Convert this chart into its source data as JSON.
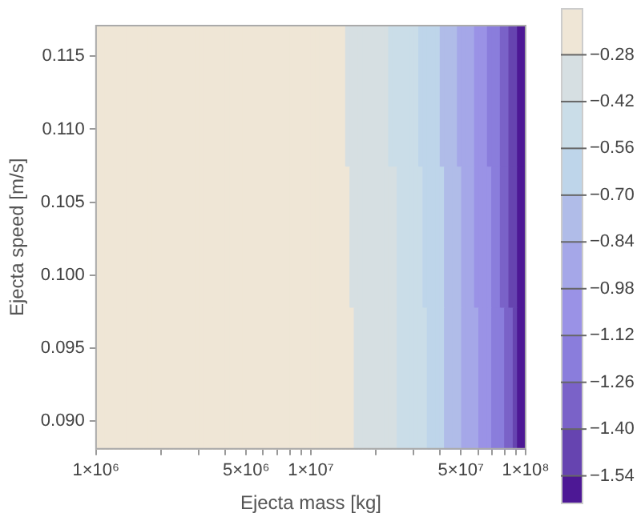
{
  "chart_data": {
    "type": "heatmap",
    "xlabel": "Ejecta mass [kg]",
    "ylabel": "Ejecta speed [m/s]",
    "log": "x",
    "xlim": [
      1000000,
      100000000
    ],
    "xticks": [
      {
        "value": 1000000,
        "label": "1×10⁶"
      },
      {
        "value": 2000000,
        "label": null
      },
      {
        "value": 3000000,
        "label": null
      },
      {
        "value": 4000000,
        "label": null
      },
      {
        "value": 5000000,
        "label": "5×10⁶"
      },
      {
        "value": 6000000,
        "label": null
      },
      {
        "value": 7000000,
        "label": null
      },
      {
        "value": 8000000,
        "label": null
      },
      {
        "value": 9000000,
        "label": null
      },
      {
        "value": 10000000,
        "label": "1×10⁷"
      },
      {
        "value": 20000000,
        "label": null
      },
      {
        "value": 30000000,
        "label": null
      },
      {
        "value": 40000000,
        "label": null
      },
      {
        "value": 50000000,
        "label": "5×10⁷"
      },
      {
        "value": 60000000,
        "label": null
      },
      {
        "value": 70000000,
        "label": null
      },
      {
        "value": 80000000,
        "label": null
      },
      {
        "value": 90000000,
        "label": null
      },
      {
        "value": 100000000,
        "label": "1×10⁸"
      }
    ],
    "ylim": [
      0.0881,
      0.1171
    ],
    "yticks": [
      {
        "value": 0.09,
        "label": "0.090"
      },
      0.095,
      {
        "value": 0.1,
        "label": "0.100"
      },
      0.105,
      {
        "value": 0.11,
        "label": "0.110"
      },
      0.115
    ],
    "cells": [
      [
        -0.21,
        -0.21,
        -0.21,
        -0.21,
        -0.21,
        -0.21,
        -0.21,
        -0.21,
        -0.21,
        -0.21,
        -0.21,
        -0.21,
        -0.21,
        -0.21,
        -0.21,
        -0.21,
        -0.21,
        -0.21,
        -0.21,
        -0.21,
        -0.21,
        -0.21,
        -0.21,
        -0.21,
        -0.21,
        -0.21,
        -0.21,
        -0.21,
        -0.21,
        -0.21,
        -0.21,
        -0.21,
        -0.21,
        -0.21,
        -0.21,
        -0.21,
        -0.21,
        -0.21,
        -0.21,
        -0.21,
        -0.21,
        -0.21,
        -0.21,
        -0.21,
        -0.21,
        -0.21,
        -0.21,
        -0.21,
        -0.21,
        -0.21,
        -0.21,
        -0.21,
        -0.21,
        -0.21,
        -0.21,
        -0.21,
        -0.21,
        -0.21,
        -0.35,
        -0.35,
        -0.35,
        -0.35,
        -0.35,
        -0.35,
        -0.35,
        -0.35,
        -0.35,
        -0.35,
        -0.49,
        -0.49,
        -0.49,
        -0.49,
        -0.49,
        -0.49,
        -0.49,
        -0.63,
        -0.63,
        -0.63,
        -0.63,
        -0.63,
        -0.77,
        -0.77,
        -0.77,
        -0.77,
        -0.91,
        -0.91,
        -0.91,
        -0.91,
        -1.05,
        -1.05,
        -1.05,
        -1.19,
        -1.19,
        -1.19,
        -1.33,
        -1.33,
        -1.47,
        -1.47,
        -1.58,
        -1.58
      ],
      [
        -0.21,
        -0.21,
        -0.21,
        -0.21,
        -0.21,
        -0.21,
        -0.21,
        -0.21,
        -0.21,
        -0.21,
        -0.21,
        -0.21,
        -0.21,
        -0.21,
        -0.21,
        -0.21,
        -0.21,
        -0.21,
        -0.21,
        -0.21,
        -0.21,
        -0.21,
        -0.21,
        -0.21,
        -0.21,
        -0.21,
        -0.21,
        -0.21,
        -0.21,
        -0.21,
        -0.21,
        -0.21,
        -0.21,
        -0.21,
        -0.21,
        -0.21,
        -0.21,
        -0.21,
        -0.21,
        -0.21,
        -0.21,
        -0.21,
        -0.21,
        -0.21,
        -0.21,
        -0.21,
        -0.21,
        -0.21,
        -0.21,
        -0.21,
        -0.21,
        -0.21,
        -0.21,
        -0.21,
        -0.21,
        -0.21,
        -0.21,
        -0.21,
        -0.21,
        -0.35,
        -0.35,
        -0.35,
        -0.35,
        -0.35,
        -0.35,
        -0.35,
        -0.35,
        -0.35,
        -0.35,
        -0.35,
        -0.49,
        -0.49,
        -0.49,
        -0.49,
        -0.49,
        -0.49,
        -0.63,
        -0.63,
        -0.63,
        -0.63,
        -0.63,
        -0.77,
        -0.77,
        -0.77,
        -0.77,
        -0.91,
        -0.91,
        -0.91,
        -1.05,
        -1.05,
        -1.05,
        -1.05,
        -1.19,
        -1.19,
        -1.33,
        -1.33,
        -1.47,
        -1.47,
        -1.58,
        -1.58
      ],
      [
        -0.21,
        -0.21,
        -0.21,
        -0.21,
        -0.21,
        -0.21,
        -0.21,
        -0.21,
        -0.21,
        -0.21,
        -0.21,
        -0.21,
        -0.21,
        -0.21,
        -0.21,
        -0.21,
        -0.21,
        -0.21,
        -0.21,
        -0.21,
        -0.21,
        -0.21,
        -0.21,
        -0.21,
        -0.21,
        -0.21,
        -0.21,
        -0.21,
        -0.21,
        -0.21,
        -0.21,
        -0.21,
        -0.21,
        -0.21,
        -0.21,
        -0.21,
        -0.21,
        -0.21,
        -0.21,
        -0.21,
        -0.21,
        -0.21,
        -0.21,
        -0.21,
        -0.21,
        -0.21,
        -0.21,
        -0.21,
        -0.21,
        -0.21,
        -0.21,
        -0.21,
        -0.21,
        -0.21,
        -0.21,
        -0.21,
        -0.21,
        -0.21,
        -0.21,
        -0.21,
        -0.35,
        -0.35,
        -0.35,
        -0.35,
        -0.35,
        -0.35,
        -0.35,
        -0.35,
        -0.35,
        -0.35,
        -0.49,
        -0.49,
        -0.49,
        -0.49,
        -0.49,
        -0.49,
        -0.49,
        -0.63,
        -0.63,
        -0.63,
        -0.63,
        -0.77,
        -0.77,
        -0.77,
        -0.77,
        -0.91,
        -0.91,
        -0.91,
        -0.91,
        -1.05,
        -1.05,
        -1.05,
        -1.19,
        -1.19,
        -1.19,
        -1.33,
        -1.33,
        -1.47,
        -1.58,
        -1.58
      ]
    ],
    "colors": [
      "#efe6d6",
      "#d6dfe2",
      "#cadde8",
      "#bed5ea",
      "#b0bce8",
      "#a5a7e8",
      "#9a92e6",
      "#8a7ddc",
      "#7a62c8",
      "#6644b0",
      "#4d1895"
    ],
    "clim": [
      -1.62,
      -0.14
    ],
    "cticks": [
      {
        "value": -0.28,
        "label": "−0.28"
      },
      {
        "value": -0.42,
        "label": "−0.42"
      },
      {
        "value": -0.56,
        "label": "−0.56"
      },
      {
        "value": -0.7,
        "label": "−0.70"
      },
      {
        "value": -0.84,
        "label": "−0.84"
      },
      {
        "value": -0.98,
        "label": "−0.98"
      },
      {
        "value": -1.12,
        "label": "−1.12"
      },
      {
        "value": -1.26,
        "label": "−1.26"
      },
      {
        "value": -1.4,
        "label": "−1.40"
      },
      {
        "value": -1.54,
        "label": "−1.54"
      }
    ]
  }
}
